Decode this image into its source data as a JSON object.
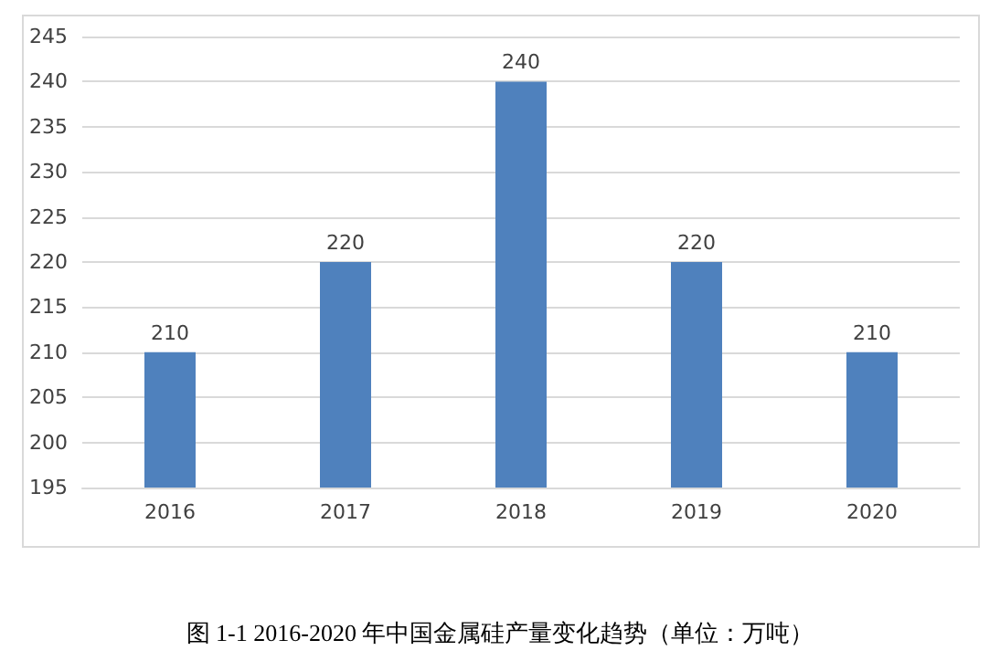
{
  "chart_data": {
    "type": "bar",
    "title": "图 1-1 2016-2020 年中国金属硅产量变化趋势（单位：万吨）",
    "categories": [
      "2016",
      "2017",
      "2018",
      "2019",
      "2020"
    ],
    "values": [
      210,
      220,
      240,
      220,
      210
    ],
    "color": "#4f81bd",
    "ylim": [
      195,
      245
    ],
    "yticks": [
      195,
      200,
      205,
      210,
      215,
      220,
      225,
      230,
      235,
      240,
      245
    ],
    "grid": "y",
    "data_labels": true
  }
}
